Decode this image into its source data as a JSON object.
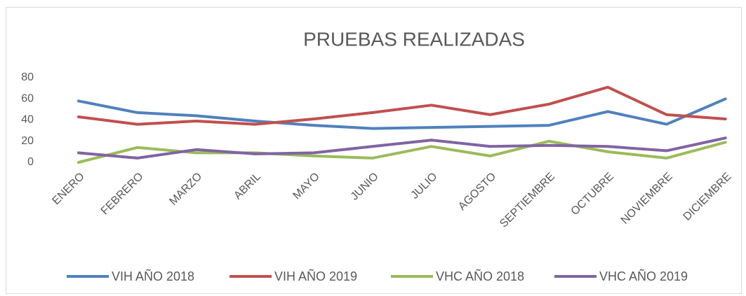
{
  "chart_data": {
    "type": "line",
    "title": "PRUEBAS REALIZADAS",
    "categories": [
      "ENERO",
      "FEBRERO",
      "MARZO",
      "ABRIL",
      "MAYO",
      "JUNIO",
      "JULIO",
      "AGOSTO",
      "SEPTIEMBRE",
      "OCTUBRE",
      "NOVIEMBRE",
      "DICIEMBRE"
    ],
    "series": [
      {
        "name": "VIH AÑO 2018",
        "color": "#4f81bd",
        "values": [
          58,
          47,
          44,
          39,
          35,
          32,
          33,
          34,
          35,
          48,
          36,
          60
        ]
      },
      {
        "name": "VIH AÑO 2019",
        "color": "#c0504d",
        "values": [
          43,
          36,
          39,
          36,
          41,
          47,
          54,
          45,
          55,
          71,
          45,
          41
        ]
      },
      {
        "name": "VHC AÑO 2018",
        "color": "#9bbb59",
        "values": [
          0,
          14,
          9,
          9,
          6,
          4,
          15,
          6,
          20,
          10,
          4,
          19
        ]
      },
      {
        "name": "VHC AÑO 2019",
        "color": "#8064a2",
        "values": [
          9,
          4,
          12,
          8,
          9,
          15,
          21,
          15,
          16,
          15,
          11,
          23
        ]
      }
    ],
    "ylim": [
      0,
      80
    ],
    "yticks": [
      0,
      20,
      40,
      60,
      80
    ],
    "legend": "bottom"
  }
}
